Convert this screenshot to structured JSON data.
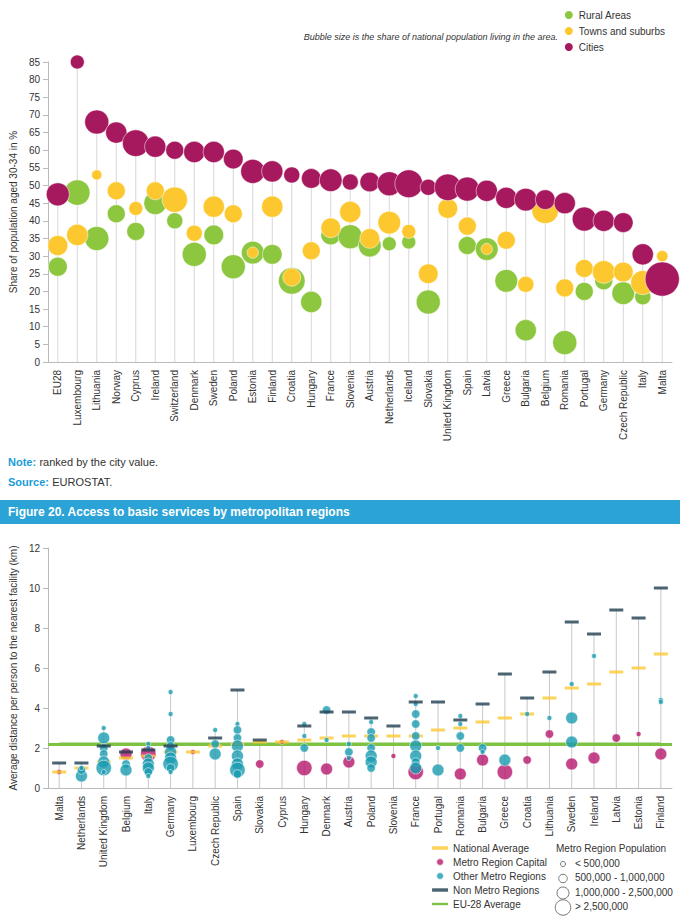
{
  "chart_data": [
    {
      "type": "scatter",
      "subtitle": "Bubble size is the share of national population living in the area.",
      "ylabel": "Share of population aged 30-34 in %",
      "categories": [
        "EU28",
        "Luxembourg",
        "Lithuania",
        "Norway",
        "Cyprus",
        "Ireland",
        "Switzerland",
        "Denmark",
        "Sweden",
        "Poland",
        "Estonia",
        "Finland",
        "Croatia",
        "Hungary",
        "France",
        "Slovenia",
        "Austria",
        "Netherlands",
        "Iceland",
        "Slovakia",
        "United Kingdom",
        "Spain",
        "Latvia",
        "Greece",
        "Bulgaria",
        "Belgium",
        "Romania",
        "Portugal",
        "Germany",
        "Czech Republic",
        "Italy",
        "Malta"
      ],
      "series": [
        {
          "name": "Rural Areas",
          "color": "#8dc63f",
          "marker": "circle",
          "values": [
            27,
            48,
            35,
            42,
            37,
            45,
            40,
            30.5,
            36,
            27,
            31,
            30.5,
            23,
            17,
            36,
            35.5,
            33,
            33.5,
            34,
            17,
            49,
            33,
            32,
            23,
            9,
            43,
            5.5,
            20,
            23,
            19.5,
            18.5,
            null
          ],
          "sizes": [
            28,
            50,
            45,
            25,
            25,
            40,
            20,
            45,
            30,
            45,
            40,
            30,
            55,
            35,
            30,
            45,
            40,
            15,
            15,
            45,
            15,
            25,
            40,
            40,
            35,
            10,
            45,
            25,
            25,
            40,
            20,
            null
          ]
        },
        {
          "name": "Towns and suburbs",
          "color": "#fdc82f",
          "marker": "circle",
          "values": [
            33,
            36,
            53,
            48.5,
            43.5,
            48.5,
            46,
            36.5,
            44,
            42,
            31,
            44,
            24,
            31.5,
            38,
            42.5,
            35,
            39.5,
            37,
            25,
            43.5,
            38.5,
            32,
            34.5,
            22,
            43,
            21,
            26.5,
            25.5,
            25.5,
            22.5,
            30
          ],
          "sizes": [
            31,
            35,
            8,
            25,
            15,
            25,
            50,
            20,
            35,
            25,
            10,
            35,
            25,
            25,
            30,
            35,
            30,
            40,
            15,
            30,
            30,
            25,
            10,
            25,
            20,
            55,
            25,
            25,
            40,
            30,
            45,
            10
          ]
        },
        {
          "name": "Cities",
          "color": "#a6195e",
          "marker": "circle",
          "values": [
            47.5,
            85,
            68,
            65,
            62,
            61,
            60,
            59.5,
            59.5,
            57.5,
            54,
            54,
            53,
            52,
            51.5,
            51,
            51,
            50.5,
            50.5,
            49.5,
            49.5,
            49,
            48.5,
            46.5,
            46,
            46,
            45,
            40.5,
            40,
            39.5,
            30.5,
            23.5
          ],
          "sizes": [
            41,
            15,
            45,
            35,
            55,
            35,
            25,
            35,
            35,
            30,
            45,
            35,
            20,
            30,
            40,
            20,
            30,
            45,
            60,
            20,
            55,
            45,
            35,
            35,
            40,
            30,
            35,
            45,
            35,
            30,
            35,
            90
          ]
        }
      ],
      "ylim": [
        0,
        85
      ],
      "yticks": [
        0,
        5,
        10,
        15,
        20,
        25,
        30,
        35,
        40,
        45,
        50,
        55,
        60,
        65,
        70,
        75,
        80,
        85
      ],
      "grid": false,
      "legend": "top-right",
      "annotations": [
        {
          "label": "Note:",
          "text": "ranked by the city value."
        },
        {
          "label": "Source:",
          "text": "EUROSTAT."
        }
      ]
    },
    {
      "type": "scatter",
      "title": "Figure 20. Access to basic services by metropolitan regions",
      "ylabel": "Average distance per person to the nearest facility (km)",
      "categories": [
        "Malta",
        "Netherlands",
        "United Kingdom",
        "Belgium",
        "Italy",
        "Germany",
        "Luxembourg",
        "Czech Republic",
        "Spain",
        "Slovakia",
        "Cyprus",
        "Hungary",
        "Denmark",
        "Austria",
        "Poland",
        "Slovenia",
        "France",
        "Portugal",
        "Romania",
        "Bulgaria",
        "Greece",
        "Croatia",
        "Lithuania",
        "Sweden",
        "Ireland",
        "Latvia",
        "Estonia",
        "Finland"
      ],
      "series": [
        {
          "name": "National Average",
          "color": "#fdc82f",
          "marker": "dash",
          "values": [
            0.8,
            1.0,
            1.3,
            1.5,
            1.6,
            1.8,
            1.8,
            2.1,
            2.2,
            2.3,
            2.3,
            2.4,
            2.5,
            2.6,
            2.6,
            2.6,
            2.6,
            2.9,
            3.0,
            3.3,
            3.5,
            3.7,
            4.5,
            5.0,
            5.2,
            5.8,
            6.0,
            6.7
          ]
        },
        {
          "name": "Metro Region Capital",
          "color": "#b5166b",
          "marker": "circle",
          "values": [
            0.8,
            null,
            null,
            1.7,
            1.7,
            null,
            1.8,
            null,
            null,
            1.2,
            2.3,
            1.0,
            0.95,
            1.3,
            null,
            1.6,
            0.8,
            null,
            0.7,
            1.4,
            0.8,
            1.4,
            2.7,
            1.2,
            1.5,
            2.5,
            2.7,
            1.7
          ],
          "populations": [
            400000,
            null,
            null,
            1200000,
            3000000,
            null,
            400000,
            null,
            null,
            600000,
            400000,
            3000000,
            1500000,
            1500000,
            null,
            400000,
            3000000,
            null,
            1500000,
            1200000,
            3000000,
            800000,
            600000,
            1500000,
            1500000,
            800000,
            400000,
            1200000
          ]
        },
        {
          "name": "Other Metro Regions",
          "color": "#1a9bb0",
          "marker": "circle",
          "points": [
            {
              "category": "Netherlands",
              "value": 0.6,
              "population": 1500000
            },
            {
              "category": "Netherlands",
              "value": 0.9,
              "population": 700000
            },
            {
              "category": "Netherlands",
              "value": 1.0,
              "population": 400000
            },
            {
              "category": "United Kingdom",
              "value": 3.0,
              "population": 400000
            },
            {
              "category": "United Kingdom",
              "value": 2.5,
              "population": 1200000
            },
            {
              "category": "United Kingdom",
              "value": 2.0,
              "population": 700000
            },
            {
              "category": "United Kingdom",
              "value": 1.7,
              "population": 600000
            },
            {
              "category": "United Kingdom",
              "value": 1.3,
              "population": 1500000
            },
            {
              "category": "United Kingdom",
              "value": 1.0,
              "population": 3000000
            },
            {
              "category": "United Kingdom",
              "value": 0.8,
              "population": 400000
            },
            {
              "category": "Belgium",
              "value": 1.2,
              "population": 700000
            },
            {
              "category": "Belgium",
              "value": 0.9,
              "population": 1200000
            },
            {
              "category": "Italy",
              "value": 2.2,
              "population": 400000
            },
            {
              "category": "Italy",
              "value": 2.0,
              "population": 400000
            },
            {
              "category": "Italy",
              "value": 1.5,
              "population": 700000
            },
            {
              "category": "Italy",
              "value": 1.2,
              "population": 1500000
            },
            {
              "category": "Italy",
              "value": 1.0,
              "population": 1200000
            },
            {
              "category": "Italy",
              "value": 0.8,
              "population": 800000
            },
            {
              "category": "Italy",
              "value": 0.6,
              "population": 400000
            },
            {
              "category": "Germany",
              "value": 4.8,
              "population": 400000
            },
            {
              "category": "Germany",
              "value": 3.7,
              "population": 400000
            },
            {
              "category": "Germany",
              "value": 2.4,
              "population": 700000
            },
            {
              "category": "Germany",
              "value": 2.1,
              "population": 600000
            },
            {
              "category": "Germany",
              "value": 1.8,
              "population": 1500000
            },
            {
              "category": "Germany",
              "value": 1.5,
              "population": 1200000
            },
            {
              "category": "Germany",
              "value": 1.2,
              "population": 3000000
            },
            {
              "category": "Germany",
              "value": 1.0,
              "population": 800000
            },
            {
              "category": "Germany",
              "value": 0.8,
              "population": 400000
            },
            {
              "category": "Czech Republic",
              "value": 2.9,
              "population": 400000
            },
            {
              "category": "Czech Republic",
              "value": 2.2,
              "population": 700000
            },
            {
              "category": "Czech Republic",
              "value": 1.7,
              "population": 1500000
            },
            {
              "category": "Spain",
              "value": 3.2,
              "population": 400000
            },
            {
              "category": "Spain",
              "value": 2.9,
              "population": 700000
            },
            {
              "category": "Spain",
              "value": 2.5,
              "population": 800000
            },
            {
              "category": "Spain",
              "value": 2.1,
              "population": 1200000
            },
            {
              "category": "Spain",
              "value": 1.6,
              "population": 1500000
            },
            {
              "category": "Spain",
              "value": 1.2,
              "population": 1500000
            },
            {
              "category": "Spain",
              "value": 0.9,
              "population": 3000000
            },
            {
              "category": "Spain",
              "value": 0.7,
              "population": 600000
            },
            {
              "category": "Hungary",
              "value": 3.2,
              "population": 400000
            },
            {
              "category": "Hungary",
              "value": 2.6,
              "population": 400000
            },
            {
              "category": "Hungary",
              "value": 2.0,
              "population": 600000
            },
            {
              "category": "Denmark",
              "value": 3.9,
              "population": 600000
            },
            {
              "category": "Denmark",
              "value": 2.4,
              "population": 400000
            },
            {
              "category": "Austria",
              "value": 2.2,
              "population": 400000
            },
            {
              "category": "Austria",
              "value": 1.8,
              "population": 600000
            },
            {
              "category": "Austria",
              "value": 1.5,
              "population": 400000
            },
            {
              "category": "Poland",
              "value": 3.3,
              "population": 400000
            },
            {
              "category": "Poland",
              "value": 2.8,
              "population": 600000
            },
            {
              "category": "Poland",
              "value": 2.5,
              "population": 700000
            },
            {
              "category": "Poland",
              "value": 2.0,
              "population": 800000
            },
            {
              "category": "Poland",
              "value": 1.6,
              "population": 1200000
            },
            {
              "category": "Poland",
              "value": 1.3,
              "population": 1500000
            },
            {
              "category": "Poland",
              "value": 1.0,
              "population": 700000
            },
            {
              "category": "France",
              "value": 4.6,
              "population": 400000
            },
            {
              "category": "France",
              "value": 4.2,
              "population": 400000
            },
            {
              "category": "France",
              "value": 3.7,
              "population": 600000
            },
            {
              "category": "France",
              "value": 3.2,
              "population": 700000
            },
            {
              "category": "France",
              "value": 2.6,
              "population": 800000
            },
            {
              "category": "France",
              "value": 2.1,
              "population": 1200000
            },
            {
              "category": "France",
              "value": 1.6,
              "population": 1500000
            },
            {
              "category": "France",
              "value": 1.3,
              "population": 700000
            },
            {
              "category": "France",
              "value": 1.0,
              "population": 1200000
            },
            {
              "category": "Portugal",
              "value": 2.0,
              "population": 400000
            },
            {
              "category": "Portugal",
              "value": 0.9,
              "population": 2000000
            },
            {
              "category": "Romania",
              "value": 3.6,
              "population": 400000
            },
            {
              "category": "Romania",
              "value": 3.2,
              "population": 400000
            },
            {
              "category": "Romania",
              "value": 2.6,
              "population": 600000
            },
            {
              "category": "Romania",
              "value": 2.0,
              "population": 700000
            },
            {
              "category": "Bulgaria",
              "value": 2.0,
              "population": 600000
            },
            {
              "category": "Bulgaria",
              "value": 1.8,
              "population": 400000
            },
            {
              "category": "Greece",
              "value": 1.4,
              "population": 1200000
            },
            {
              "category": "Croatia",
              "value": 3.7,
              "population": 400000
            },
            {
              "category": "Lithuania",
              "value": 3.5,
              "population": 400000
            },
            {
              "category": "Sweden",
              "value": 5.2,
              "population": 400000
            },
            {
              "category": "Sweden",
              "value": 3.5,
              "population": 1200000
            },
            {
              "category": "Sweden",
              "value": 2.3,
              "population": 1500000
            },
            {
              "category": "Ireland",
              "value": 6.6,
              "population": 400000
            },
            {
              "category": "Finland",
              "value": 4.4,
              "population": 400000
            },
            {
              "category": "Finland",
              "value": 4.3,
              "population": 400000
            }
          ]
        },
        {
          "name": "Non Metro Regions",
          "color": "#1f3c4f",
          "marker": "dash",
          "values": [
            1.25,
            1.25,
            2.1,
            1.8,
            1.9,
            2.1,
            null,
            2.5,
            4.9,
            2.4,
            null,
            3.1,
            3.8,
            3.8,
            3.5,
            3.1,
            4.3,
            4.3,
            3.4,
            4.2,
            5.7,
            4.5,
            5.8,
            8.3,
            7.7,
            8.9,
            8.5,
            10.0
          ]
        },
        {
          "name": "EU-28 Average",
          "color": "#7dc242",
          "type": "hline",
          "line_style": "solid",
          "value": 2.2
        }
      ],
      "size_legend": {
        "title": "Metro Region Population",
        "classes": [
          {
            "label": "< 500,000",
            "min": 0
          },
          {
            "label": "500,000 - 1,000,000",
            "min": 500000
          },
          {
            "label": "1,000,000 - 2,500,000",
            "min": 1000000
          },
          {
            "label": "> 2,500,000",
            "min": 2500000
          }
        ]
      },
      "ylim": [
        0,
        12
      ],
      "yticks": [
        0,
        2,
        4,
        6,
        8,
        10,
        12
      ],
      "grid": false,
      "legend": "bottom-right"
    }
  ]
}
